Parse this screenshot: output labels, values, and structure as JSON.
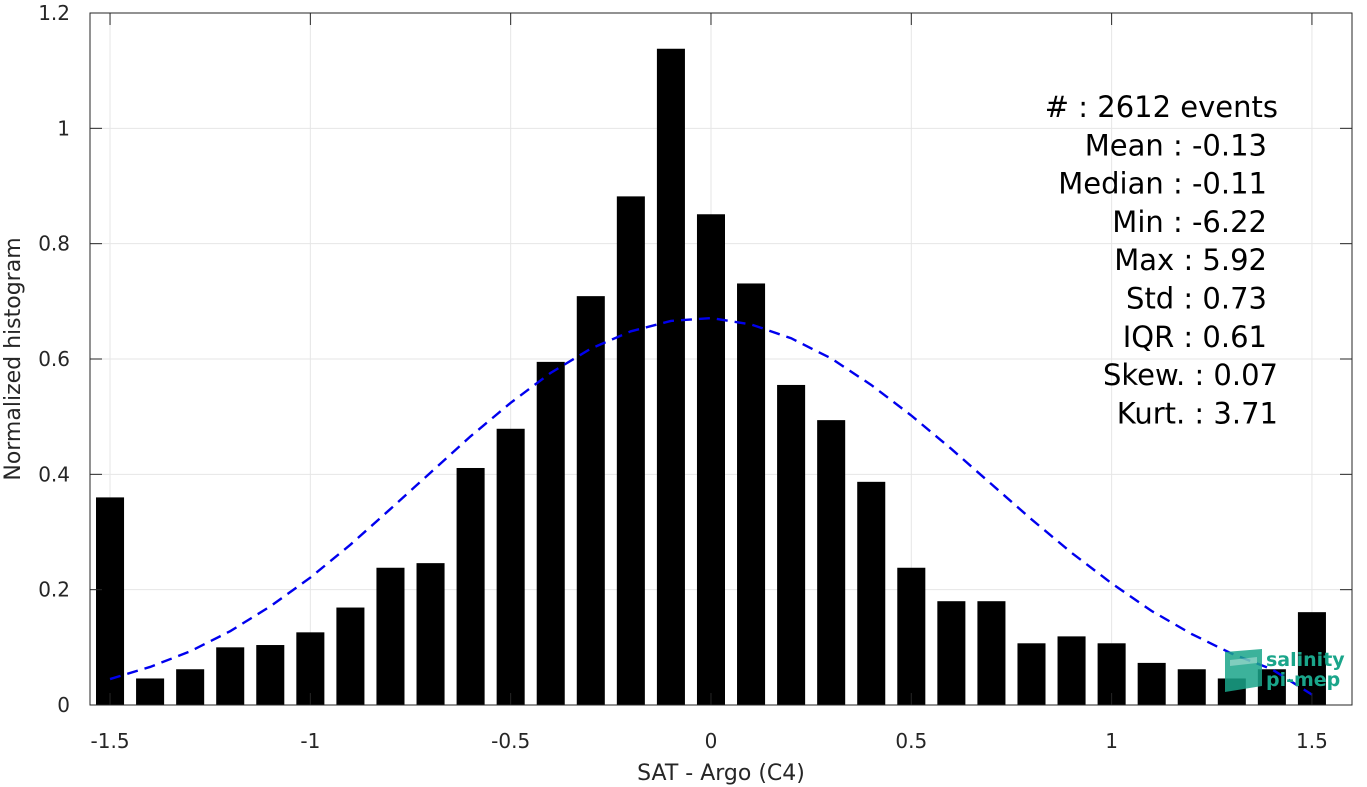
{
  "chart_data": {
    "type": "bar",
    "xlabel": "SAT - Argo (C4)",
    "ylabel": "Normalized histogram",
    "xlim": [
      -1.55,
      1.6
    ],
    "ylim": [
      0,
      1.2
    ],
    "grid": true,
    "x_ticks": [
      -1.5,
      -1,
      -0.5,
      0,
      0.5,
      1,
      1.5
    ],
    "x_tick_labels": [
      "-1.5",
      "-1",
      "-0.5",
      "0",
      "0.5",
      "1",
      "1.5"
    ],
    "y_ticks": [
      0,
      0.2,
      0.4,
      0.6,
      0.8,
      1,
      1.2
    ],
    "y_tick_labels": [
      "0",
      "0.2",
      "0.4",
      "0.6",
      "0.8",
      "1",
      "1.2"
    ],
    "bar_width": 0.07,
    "bar_color": "#000000",
    "x": [
      -1.5,
      -1.4,
      -1.3,
      -1.2,
      -1.1,
      -1.0,
      -0.9,
      -0.8,
      -0.7,
      -0.6,
      -0.5,
      -0.4,
      -0.3,
      -0.2,
      -0.1,
      0.0,
      0.1,
      0.2,
      0.3,
      0.4,
      0.5,
      0.6,
      0.7,
      0.8,
      0.9,
      1.0,
      1.1,
      1.2,
      1.3,
      1.4,
      1.5
    ],
    "values": [
      0.36,
      0.046,
      0.062,
      0.1,
      0.104,
      0.126,
      0.169,
      0.238,
      0.246,
      0.411,
      0.479,
      0.595,
      0.709,
      0.882,
      1.138,
      0.851,
      0.731,
      0.555,
      0.494,
      0.387,
      0.238,
      0.18,
      0.18,
      0.107,
      0.119,
      0.107,
      0.073,
      0.062,
      0.046,
      0.062,
      0.161
    ],
    "fit": {
      "style": "dashed",
      "color": "#0000ee",
      "x": [
        -1.5,
        -1.4,
        -1.3,
        -1.2,
        -1.1,
        -1.0,
        -0.9,
        -0.8,
        -0.7,
        -0.6,
        -0.5,
        -0.4,
        -0.3,
        -0.2,
        -0.1,
        0.0,
        0.1,
        0.2,
        0.3,
        0.4,
        0.5,
        0.6,
        0.7,
        0.8,
        0.9,
        1.0,
        1.1,
        1.2,
        1.3,
        1.4,
        1.5
      ],
      "y": [
        0.045,
        0.066,
        0.093,
        0.128,
        0.171,
        0.221,
        0.278,
        0.34,
        0.403,
        0.466,
        0.524,
        0.576,
        0.618,
        0.648,
        0.666,
        0.671,
        0.66,
        0.636,
        0.601,
        0.555,
        0.502,
        0.444,
        0.383,
        0.322,
        0.264,
        0.211,
        0.163,
        0.123,
        0.089,
        0.062,
        0.018
      ]
    },
    "stats_lines": [
      "#  : 2612 events",
      "Mean : -0.13",
      "Median : -0.11",
      "Min : -6.22",
      "Max : 5.92",
      "Std : 0.73",
      "IQR : 0.61",
      "Skew. : 0.07",
      "Kurt. : 3.71"
    ],
    "stats_align_x": [
      1278,
      1267,
      1267,
      1267,
      1267,
      1267,
      1267,
      1278,
      1278
    ]
  },
  "logo": {
    "line1": "salinity",
    "line2": "pi-mep",
    "color": "#1aa58a"
  }
}
